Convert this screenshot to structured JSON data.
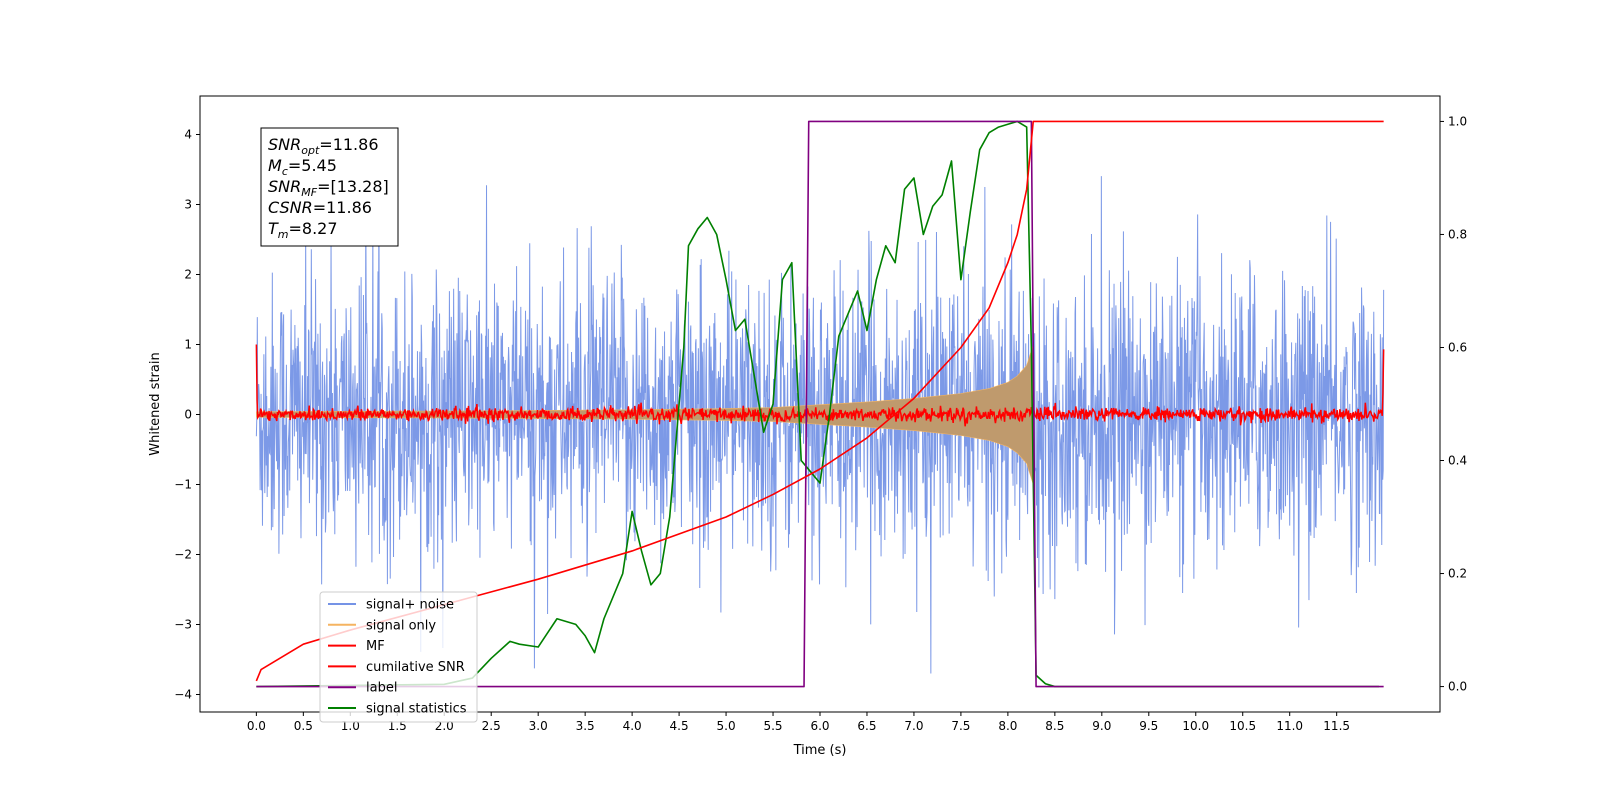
{
  "chart_data": {
    "type": "line",
    "xlabel": "Time (s)",
    "ylabel": "Whitened strain",
    "xlim": [
      -0.6,
      12.6
    ],
    "ylim": [
      -4.25,
      4.55
    ],
    "y2lim": [
      -0.045,
      1.045
    ],
    "x_ticks": [
      0.0,
      0.5,
      1.0,
      1.5,
      2.0,
      2.5,
      3.0,
      3.5,
      4.0,
      4.5,
      5.0,
      5.5,
      6.0,
      6.5,
      7.0,
      7.5,
      8.0,
      8.5,
      9.0,
      9.5,
      10.0,
      10.5,
      11.0,
      11.5
    ],
    "x_tick_labels": [
      "0.0",
      "0.5",
      "1.0",
      "1.5",
      "2.0",
      "2.5",
      "3.0",
      "3.5",
      "4.0",
      "4.5",
      "5.0",
      "5.5",
      "6.0",
      "6.5",
      "7.0",
      "7.5",
      "8.0",
      "8.5",
      "9.0",
      "9.5",
      "10.0",
      "10.5",
      "11.0",
      "11.5"
    ],
    "y_ticks": [
      -4,
      -3,
      -2,
      -1,
      0,
      1,
      2,
      3,
      4
    ],
    "y_tick_labels": [
      "−4",
      "−3",
      "−2",
      "−1",
      "0",
      "1",
      "2",
      "3",
      "4"
    ],
    "y2_ticks": [
      0.0,
      0.2,
      0.4,
      0.6,
      0.8,
      1.0
    ],
    "y2_tick_labels": [
      "0.0",
      "0.2",
      "0.4",
      "0.6",
      "0.8",
      "1.0"
    ],
    "legend_position": "lower-left",
    "grid": false,
    "annotation": {
      "lines": [
        {
          "symbol": "SNR",
          "subscript": "opt",
          "value": "=11.86"
        },
        {
          "symbol": "M",
          "subscript": "c",
          "value": "=5.45"
        },
        {
          "symbol": "SNR",
          "subscript": "MF",
          "value": "=[13.28]"
        },
        {
          "symbol": "CSNR",
          "subscript": "",
          "value": "=11.86"
        },
        {
          "symbol": "T",
          "subscript": "m",
          "value": "=8.27"
        }
      ]
    },
    "series": [
      {
        "name": "signal+ noise",
        "color": "#7593e6",
        "axis": "left",
        "kind": "noise",
        "x_range": [
          0.0,
          12.0
        ],
        "envelope": {
          "max_typical": 2.8,
          "min_typical": -2.8,
          "peak_high": 4.2,
          "peak_low": -3.7
        }
      },
      {
        "name": "signal only",
        "color": "#f5b461",
        "fill_color": "#bf9a6d",
        "axis": "left",
        "kind": "chirp_envelope",
        "x": [
          0.0,
          1.0,
          2.0,
          3.0,
          4.0,
          5.0,
          5.5,
          6.0,
          6.5,
          7.0,
          7.5,
          7.8,
          8.0,
          8.1,
          8.2,
          8.27
        ],
        "amplitude": [
          0.04,
          0.045,
          0.05,
          0.058,
          0.068,
          0.085,
          0.1,
          0.14,
          0.18,
          0.23,
          0.3,
          0.37,
          0.46,
          0.55,
          0.7,
          1.0
        ]
      },
      {
        "name": "MF",
        "color": "#ff0000",
        "axis": "left",
        "kind": "noise",
        "x_range": [
          0.0,
          12.0
        ],
        "envelope": {
          "max_typical": 0.12,
          "min_typical": -0.12,
          "edge_start": 1.0,
          "edge_end": 0.93
        }
      },
      {
        "name": "cumilative SNR",
        "color": "#ff0000",
        "axis": "right",
        "x": [
          0.0,
          0.05,
          0.5,
          1.0,
          2.0,
          3.0,
          4.0,
          5.0,
          5.5,
          6.0,
          6.5,
          7.0,
          7.5,
          7.8,
          8.0,
          8.1,
          8.2,
          8.27,
          12.0
        ],
        "y": [
          0.01,
          0.03,
          0.075,
          0.1,
          0.145,
          0.19,
          0.24,
          0.3,
          0.34,
          0.385,
          0.44,
          0.51,
          0.6,
          0.67,
          0.75,
          0.8,
          0.88,
          1.0,
          1.0
        ]
      },
      {
        "name": "label",
        "color": "#800080",
        "axis": "right",
        "x": [
          0.0,
          5.83,
          5.88,
          8.25,
          8.3,
          12.0
        ],
        "y": [
          0.0,
          0.0,
          1.0,
          1.0,
          0.0,
          0.0
        ]
      },
      {
        "name": "signal statistics",
        "color": "#008000",
        "axis": "right",
        "x": [
          0.0,
          1.0,
          2.0,
          2.3,
          2.5,
          2.7,
          2.8,
          3.0,
          3.2,
          3.4,
          3.5,
          3.6,
          3.7,
          3.9,
          4.0,
          4.1,
          4.2,
          4.3,
          4.4,
          4.5,
          4.55,
          4.6,
          4.7,
          4.8,
          4.9,
          5.0,
          5.1,
          5.2,
          5.3,
          5.4,
          5.5,
          5.6,
          5.7,
          5.8,
          5.9,
          6.0,
          6.1,
          6.2,
          6.3,
          6.4,
          6.5,
          6.6,
          6.7,
          6.8,
          6.9,
          7.0,
          7.1,
          7.2,
          7.3,
          7.4,
          7.5,
          7.6,
          7.7,
          7.8,
          7.9,
          8.0,
          8.1,
          8.2,
          8.25,
          8.3,
          8.4,
          8.5,
          9.0,
          10.0,
          11.0,
          11.95
        ],
        "y": [
          0.0,
          0.002,
          0.004,
          0.015,
          0.05,
          0.08,
          0.075,
          0.07,
          0.12,
          0.11,
          0.09,
          0.06,
          0.12,
          0.2,
          0.31,
          0.24,
          0.18,
          0.2,
          0.3,
          0.5,
          0.6,
          0.78,
          0.81,
          0.83,
          0.8,
          0.72,
          0.63,
          0.65,
          0.55,
          0.45,
          0.5,
          0.72,
          0.75,
          0.4,
          0.38,
          0.36,
          0.48,
          0.62,
          0.66,
          0.7,
          0.63,
          0.72,
          0.78,
          0.75,
          0.88,
          0.9,
          0.8,
          0.85,
          0.87,
          0.93,
          0.72,
          0.84,
          0.95,
          0.98,
          0.99,
          0.995,
          1.0,
          0.99,
          0.6,
          0.02,
          0.005,
          0.0,
          0.0,
          0.0,
          0.0,
          0.0
        ]
      }
    ]
  }
}
